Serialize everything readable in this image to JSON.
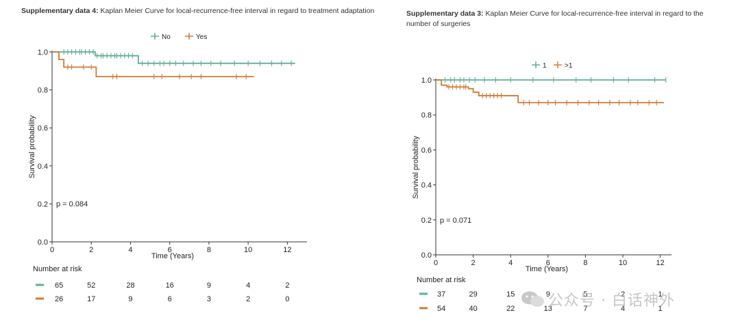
{
  "captions": [
    {
      "bold": "Supplementary data 4:",
      "text": " Kaplan Meier Curve for local-recurrence-free interval in regard to treatment adaptation"
    },
    {
      "bold": "Supplementary data 3:",
      "text": " Kaplan Meier Curve for local-recurrence-free interval in regard to the number of surgeries"
    }
  ],
  "watermark": "公众号 · 白话神外",
  "colors": {
    "green": "#5fae94",
    "orange": "#d07a35",
    "axis": "#333333"
  },
  "chart_data": [
    {
      "type": "line",
      "step": true,
      "title": "",
      "xlabel": "Time (Years)",
      "ylabel": "Survival probability",
      "xlim": [
        0,
        13
      ],
      "ylim": [
        0,
        1.0
      ],
      "xticks": [
        0,
        2,
        4,
        6,
        8,
        10,
        12
      ],
      "yticks": [
        0.0,
        0.2,
        0.4,
        0.6,
        0.8,
        1.0
      ],
      "ytick_labels": [
        "0.0",
        "0.2",
        "0.4",
        "0.6",
        "0.8",
        "1.0"
      ],
      "legend": {
        "position": "top-center",
        "entries": [
          "No",
          "Yes"
        ]
      },
      "annotation": "p = 0.084",
      "series": [
        {
          "name": "No",
          "color": "green",
          "steps": [
            [
              0,
              1.0
            ],
            [
              2.2,
              0.98
            ],
            [
              4.4,
              0.94
            ],
            [
              12.4,
              0.94
            ]
          ],
          "censors": [
            0.6,
            0.8,
            1.0,
            1.2,
            1.4,
            1.5,
            1.7,
            1.9,
            2.1,
            2.3,
            2.5,
            2.6,
            2.8,
            3.0,
            3.2,
            3.3,
            3.5,
            3.7,
            3.9,
            4.1,
            4.6,
            4.9,
            5.2,
            5.5,
            5.7,
            6.0,
            6.3,
            6.7,
            7.2,
            7.6,
            8.1,
            8.6,
            9.3,
            10.0,
            10.6,
            11.2,
            11.7,
            12.2
          ]
        },
        {
          "name": "Yes",
          "color": "orange",
          "steps": [
            [
              0,
              1.0
            ],
            [
              0.35,
              0.96
            ],
            [
              0.6,
              0.92
            ],
            [
              2.25,
              0.87
            ],
            [
              10.3,
              0.87
            ]
          ],
          "censors": [
            0.8,
            1.0,
            1.6,
            2.0,
            3.1,
            3.3,
            5.2,
            5.6,
            6.5,
            7.1,
            7.6,
            9.4,
            9.9
          ]
        }
      ],
      "risk_table": {
        "label": "Number at risk",
        "rows": [
          {
            "series": "No",
            "values": [
              "65",
              "52",
              "28",
              "16",
              "9",
              "4",
              "2"
            ]
          },
          {
            "series": "Yes",
            "values": [
              "26",
              "17",
              "9",
              "6",
              "3",
              "2",
              "0"
            ]
          }
        ]
      }
    },
    {
      "type": "line",
      "step": true,
      "title": "",
      "xlabel": "Time (Years)",
      "ylabel": "Survival probability",
      "xlim": [
        0,
        12.6
      ],
      "ylim": [
        0,
        1.0
      ],
      "xticks": [
        0,
        2,
        4,
        6,
        8,
        10,
        12
      ],
      "yticks": [
        0.0,
        0.2,
        0.4,
        0.6,
        0.8,
        1.0
      ],
      "ytick_labels": [
        "0.0",
        "0.2",
        "0.4",
        "0.6",
        "0.8",
        "1.0"
      ],
      "legend": {
        "position": "top-center",
        "entries": [
          "1",
          ">1"
        ]
      },
      "annotation": "p = 0.071",
      "series": [
        {
          "name": "1",
          "color": "green",
          "steps": [
            [
              0,
              1.0
            ],
            [
              12.3,
              1.0
            ]
          ],
          "censors": [
            0.5,
            0.8,
            1.0,
            1.3,
            1.5,
            1.8,
            2.1,
            2.6,
            3.2,
            4.0,
            5.2,
            6.3,
            7.5,
            8.3,
            9.5,
            10.3,
            11.7,
            12.3
          ]
        },
        {
          "name": ">1",
          "color": "orange",
          "steps": [
            [
              0,
              1.0
            ],
            [
              0.3,
              0.97
            ],
            [
              0.6,
              0.96
            ],
            [
              1.75,
              0.95
            ],
            [
              2.0,
              0.93
            ],
            [
              2.3,
              0.91
            ],
            [
              4.4,
              0.87
            ],
            [
              12.2,
              0.87
            ]
          ],
          "censors": [
            0.7,
            0.9,
            1.1,
            1.3,
            1.5,
            1.6,
            2.5,
            2.7,
            2.9,
            3.1,
            3.3,
            3.5,
            4.7,
            5.0,
            5.5,
            6.0,
            6.4,
            7.0,
            7.6,
            8.2,
            8.7,
            9.3,
            9.8,
            10.4,
            10.8,
            11.4,
            11.8
          ]
        }
      ],
      "risk_table": {
        "label": "Number at risk",
        "rows": [
          {
            "series": "1",
            "values": [
              "37",
              "29",
              "15",
              "9",
              "5",
              "2",
              "1"
            ]
          },
          {
            "series": ">1",
            "values": [
              "54",
              "40",
              "22",
              "13",
              "7",
              "4",
              "1"
            ]
          }
        ]
      }
    }
  ]
}
